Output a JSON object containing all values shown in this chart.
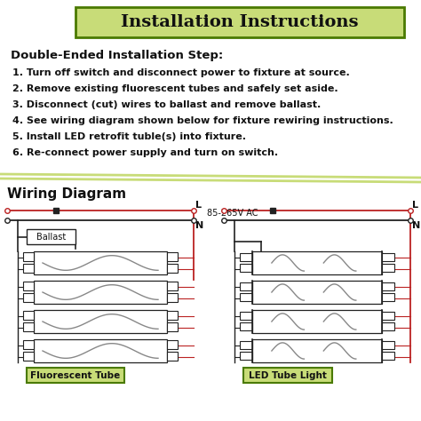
{
  "title": "Installation Instructions",
  "title_bg": "#c8dc78",
  "title_border": "#4a7a00",
  "subtitle": "Double-Ended Installation Step:",
  "steps": [
    "1. Turn off switch and disconnect power to fixture at source.",
    "2. Remove existing fluorescent tubes and safely set aside.",
    "3. Disconnect (cut) wires to ballast and remove ballast.",
    "4. See wiring diagram shown below for fixture rewiring instructions.",
    "5. Install LED retrofit tuble(s) into fixture.",
    "6. Re-connect power supply and turn on switch."
  ],
  "wiring_title": "Wiring Diagram",
  "label_L": "L",
  "label_N": "N",
  "label_ac": "85-265V AC",
  "label_ballast": "Ballast",
  "label_fluor": "Fluorescent Tube",
  "label_led": "LED Tube Light",
  "label_bg": "#c8dc78",
  "bg_color": "#ffffff",
  "line_color_red": "#bb2222",
  "line_color_dark": "#222222",
  "divider_color": "#c8dc78",
  "text_color": "#111111",
  "fig_w": 4.74,
  "fig_h": 4.74,
  "dpi": 100
}
